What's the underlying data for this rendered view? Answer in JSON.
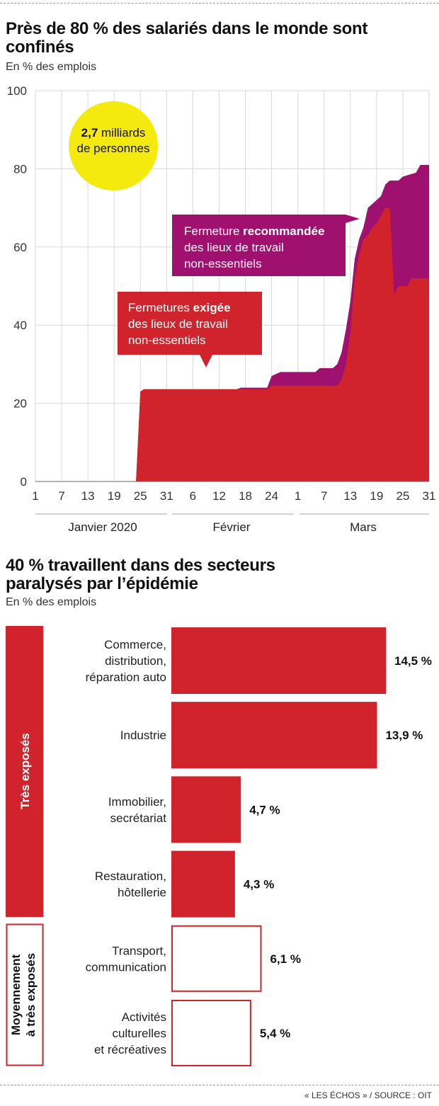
{
  "colors": {
    "red": "#d0232b",
    "purple": "#a0106e",
    "yellow": "#f5ea0e",
    "grid": "#d9d9d9"
  },
  "chart_data": [
    {
      "type": "area",
      "title_line1": "Près de 80 % des salariés dans le monde sont",
      "title_line2": "confinés",
      "subtitle": "En % des emplois",
      "ylim": [
        0,
        100
      ],
      "y_ticks": [
        0,
        20,
        40,
        60,
        80,
        100
      ],
      "x_tick_labels": [
        "1",
        "7",
        "13",
        "19",
        "25",
        "31",
        "6",
        "12",
        "18",
        "24",
        "1",
        "7",
        "13",
        "19",
        "25",
        "31"
      ],
      "months": [
        "Janvier 2020",
        "Février",
        "Mars"
      ],
      "series": [
        {
          "name": "Fermeture recommandée des lieux de travail non-essentiels",
          "points": [
            [
              1,
              0
            ],
            [
              24,
              0
            ],
            [
              25,
              23
            ],
            [
              25.8,
              23.6
            ],
            [
              47,
              23.6
            ],
            [
              48,
              24
            ],
            [
              54,
              24
            ],
            [
              55,
              27
            ],
            [
              57,
              28
            ],
            [
              65,
              28
            ],
            [
              66,
              29
            ],
            [
              69,
              29
            ],
            [
              70,
              30
            ],
            [
              71,
              33
            ],
            [
              72,
              39
            ],
            [
              73,
              46
            ],
            [
              74,
              57
            ],
            [
              75,
              62
            ],
            [
              76,
              65
            ],
            [
              77,
              70
            ],
            [
              78,
              71
            ],
            [
              80,
              73
            ],
            [
              81,
              76
            ],
            [
              82,
              77
            ],
            [
              84,
              77
            ],
            [
              85,
              78
            ],
            [
              88,
              79
            ],
            [
              89,
              81
            ],
            [
              91,
              81
            ]
          ]
        },
        {
          "name": "Fermetures exigée des lieux de travail non-essentiels",
          "points": [
            [
              1,
              0
            ],
            [
              24,
              0
            ],
            [
              25,
              23
            ],
            [
              25.8,
              23.6
            ],
            [
              54,
              23.6
            ],
            [
              55,
              24.5
            ],
            [
              70,
              24.5
            ],
            [
              71,
              26
            ],
            [
              72,
              30
            ],
            [
              73,
              38
            ],
            [
              74,
              52
            ],
            [
              75,
              58
            ],
            [
              76,
              62
            ],
            [
              77,
              63
            ],
            [
              78,
              65
            ],
            [
              79,
              66
            ],
            [
              80,
              68
            ],
            [
              81,
              70
            ],
            [
              82,
              70
            ],
            [
              83,
              48
            ],
            [
              84,
              50
            ],
            [
              86,
              50
            ],
            [
              87,
              52
            ],
            [
              91,
              52
            ]
          ]
        }
      ],
      "annotations": {
        "bubble_bold": "2,7",
        "bubble_rest": " milliards",
        "bubble_line2": "de personnes",
        "purple_pre": "Fermeture ",
        "purple_bold": "recommandée",
        "purple_line2": "des lieux de travail",
        "purple_line3": "non-essentiels",
        "red_pre": "Fermetures ",
        "red_bold": "exigée",
        "red_line2": "des lieux de travail",
        "red_line3": "non-essentiels"
      }
    },
    {
      "type": "bar",
      "title_line1": "40 % travaillent dans des secteurs",
      "title_line2": "paralysés par l’épidémie",
      "subtitle": "En % des emplois",
      "groups": [
        {
          "label": "Très exposés",
          "style": "filled",
          "count": 4
        },
        {
          "label_line1": "Moyennement",
          "label_line2": "à très exposés",
          "style": "outline",
          "count": 2
        }
      ],
      "bars": [
        {
          "lines": [
            "Commerce,",
            "distribution,",
            "réparation auto"
          ],
          "value": 14.5,
          "label": "14,5 %",
          "style": "filled"
        },
        {
          "lines": [
            "Industrie"
          ],
          "value": 13.9,
          "label": "13,9 %",
          "style": "filled"
        },
        {
          "lines": [
            "Immobilier,",
            "secrétariat"
          ],
          "value": 4.7,
          "label": "4,7 %",
          "style": "filled"
        },
        {
          "lines": [
            "Restauration,",
            "hôtellerie"
          ],
          "value": 4.3,
          "label": "4,3 %",
          "style": "filled"
        },
        {
          "lines": [
            "Transport,",
            "communication"
          ],
          "value": 6.1,
          "label": "6,1 %",
          "style": "outline"
        },
        {
          "lines": [
            "Activités",
            "culturelles",
            "et récréatives"
          ],
          "value": 5.4,
          "label": "5,4 %",
          "style": "outline"
        }
      ]
    }
  ],
  "source": "« LES ÉCHOS » / SOURCE : OIT"
}
